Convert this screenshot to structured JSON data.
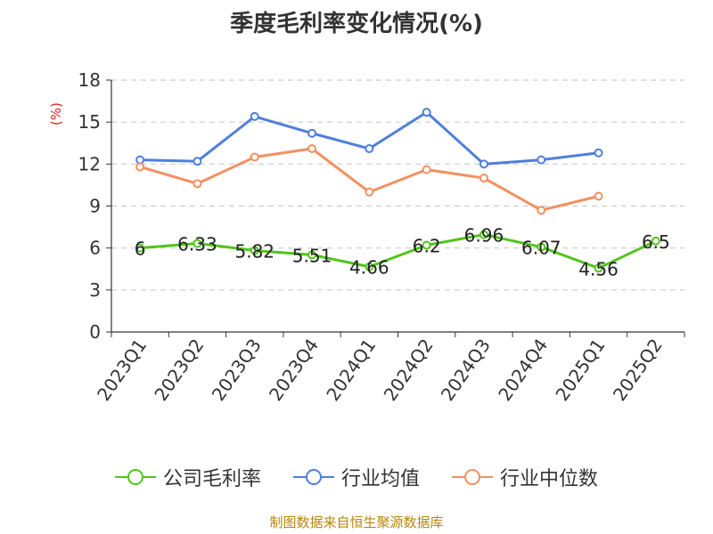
{
  "chart_data": {
    "type": "line",
    "title": "季度毛利率变化情况(%)",
    "ylabel": "(%)",
    "ylim": [
      0,
      18
    ],
    "yticks": [
      0,
      3,
      6,
      9,
      12,
      15,
      18
    ],
    "grid": true,
    "legend_position": "bottom",
    "categories": [
      "2023Q1",
      "2023Q2",
      "2023Q3",
      "2023Q4",
      "2024Q1",
      "2024Q2",
      "2024Q3",
      "2024Q4",
      "2025Q1",
      "2025Q2"
    ],
    "series": [
      {
        "name": "公司毛利率",
        "color": "#52c41a",
        "values": [
          6,
          6.33,
          5.82,
          5.51,
          4.66,
          6.2,
          6.96,
          6.07,
          4.56,
          6.5
        ],
        "data_labels": [
          "6",
          "6.33",
          "5.82",
          "5.51",
          "4.66",
          "6.2",
          "6.96",
          "6.07",
          "4.56",
          "6.5"
        ]
      },
      {
        "name": "行业均值",
        "color": "#4e7fdc",
        "values": [
          12.3,
          12.2,
          15.4,
          14.2,
          13.1,
          15.7,
          12.0,
          12.3,
          12.8,
          null
        ]
      },
      {
        "name": "行业中位数",
        "color": "#f39060",
        "values": [
          11.8,
          10.6,
          12.5,
          13.1,
          10.0,
          11.6,
          11.0,
          8.7,
          9.7,
          null
        ]
      }
    ]
  },
  "source": "制图数据来自恒生聚源数据库"
}
